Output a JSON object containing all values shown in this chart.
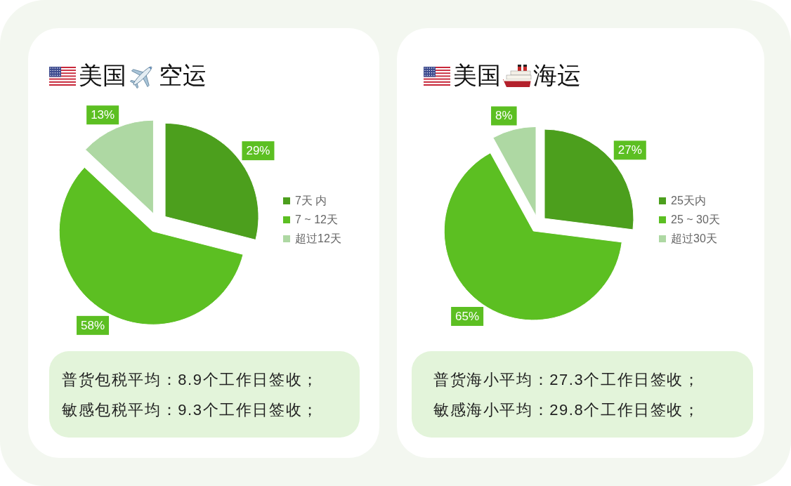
{
  "chart_data": [
    {
      "type": "pie",
      "title": "美国空运",
      "categories": [
        "7天 内",
        "7 ~ 12天",
        "超过12天"
      ],
      "values": [
        29,
        58,
        13
      ],
      "colors": [
        "#4c9f1d",
        "#5cbf22",
        "#aed8a3"
      ],
      "value_labels": [
        "29%",
        "58%",
        "13%"
      ],
      "legend": "right",
      "annotations": [
        "普货包税平均：8.9个工作日签收；",
        "敏感包税平均：9.3个工作日签收；"
      ]
    },
    {
      "type": "pie",
      "title": "美国海运",
      "categories": [
        "25天内",
        "25 ~ 30天",
        "超过30天"
      ],
      "values": [
        27,
        65,
        8
      ],
      "colors": [
        "#4c9f1d",
        "#5cbf22",
        "#aed8a3"
      ],
      "value_labels": [
        "27%",
        "65%",
        "8%"
      ],
      "legend": "right",
      "annotations": [
        "普货海小平均：27.3个工作日签收；",
        "敏感海小平均：29.8个工作日签收；"
      ]
    }
  ]
}
